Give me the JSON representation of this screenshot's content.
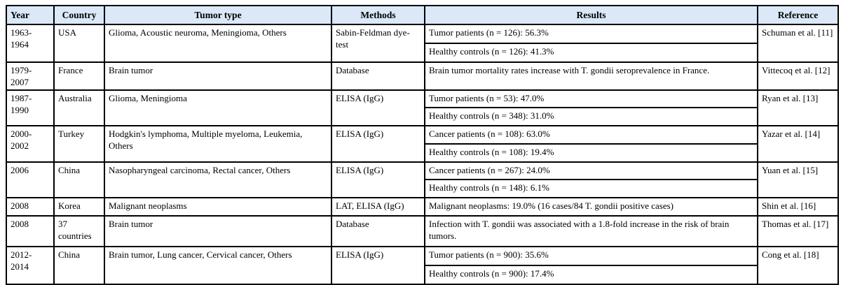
{
  "colors": {
    "header_bg": "#dbe8f7",
    "border": "#000000",
    "text": "#000000"
  },
  "table": {
    "headers": [
      "Year",
      "Country",
      "Tumor type",
      "Methods",
      "Results",
      "Reference"
    ],
    "rows": [
      {
        "year": "1963-1964",
        "country": "USA",
        "tumor_type": "Glioma, Acoustic neuroma, Meningioma, Others",
        "methods": "Sabin-Feldman dye-test",
        "results": [
          "Tumor patients (n = 126): 56.3%",
          "Healthy controls (n = 126): 41.3%"
        ],
        "reference": "Schuman et al. [11]"
      },
      {
        "year": "1979-2007",
        "country": "France",
        "tumor_type": "Brain tumor",
        "methods": "Database",
        "results": [
          "Brain tumor mortality rates increase with T. gondii seroprevalence in France."
        ],
        "reference": "Vittecoq et al. [12]"
      },
      {
        "year": "1987-1990",
        "country": "Australia",
        "tumor_type": "Glioma, Meningioma",
        "methods": "ELISA (IgG)",
        "results": [
          "Tumor patients (n = 53): 47.0%",
          "Healthy controls (n = 348): 31.0%"
        ],
        "reference": "Ryan et al. [13]"
      },
      {
        "year": "2000-2002",
        "country": "Turkey",
        "tumor_type": "Hodgkin's lymphoma, Multiple myeloma, Leukemia, Others",
        "methods": "ELISA (IgG)",
        "results": [
          "Cancer patients (n = 108): 63.0%",
          "Healthy controls (n = 108): 19.4%"
        ],
        "reference": "Yazar et al. [14]"
      },
      {
        "year": "2006",
        "country": "China",
        "tumor_type": "Nasopharyngeal carcinoma, Rectal cancer, Others",
        "methods": "ELISA (IgG)",
        "results": [
          "Cancer patients (n = 267): 24.0%",
          "Healthy controls (n = 148): 6.1%"
        ],
        "reference": "Yuan et al. [15]"
      },
      {
        "year": "2008",
        "country": "Korea",
        "tumor_type": "Malignant neoplasms",
        "methods": "LAT, ELISA (IgG)",
        "results": [
          "Malignant neoplasms: 19.0% (16 cases/84 T. gondii positive cases)"
        ],
        "reference": "Shin et al. [16]"
      },
      {
        "year": "2008",
        "country": "37 countries",
        "tumor_type": "Brain tumor",
        "methods": "Database",
        "results": [
          "Infection with T. gondii was associated with a 1.8-fold increase in the risk of brain tumors."
        ],
        "reference": "Thomas et al. [17]"
      },
      {
        "year": "2012-2014",
        "country": "China",
        "tumor_type": "Brain tumor, Lung cancer, Cervical cancer, Others",
        "methods": "ELISA (IgG)",
        "results": [
          "Tumor patients (n = 900): 35.6%",
          "Healthy controls (n = 900): 17.4%"
        ],
        "reference": "Cong et al. [18]"
      }
    ]
  }
}
